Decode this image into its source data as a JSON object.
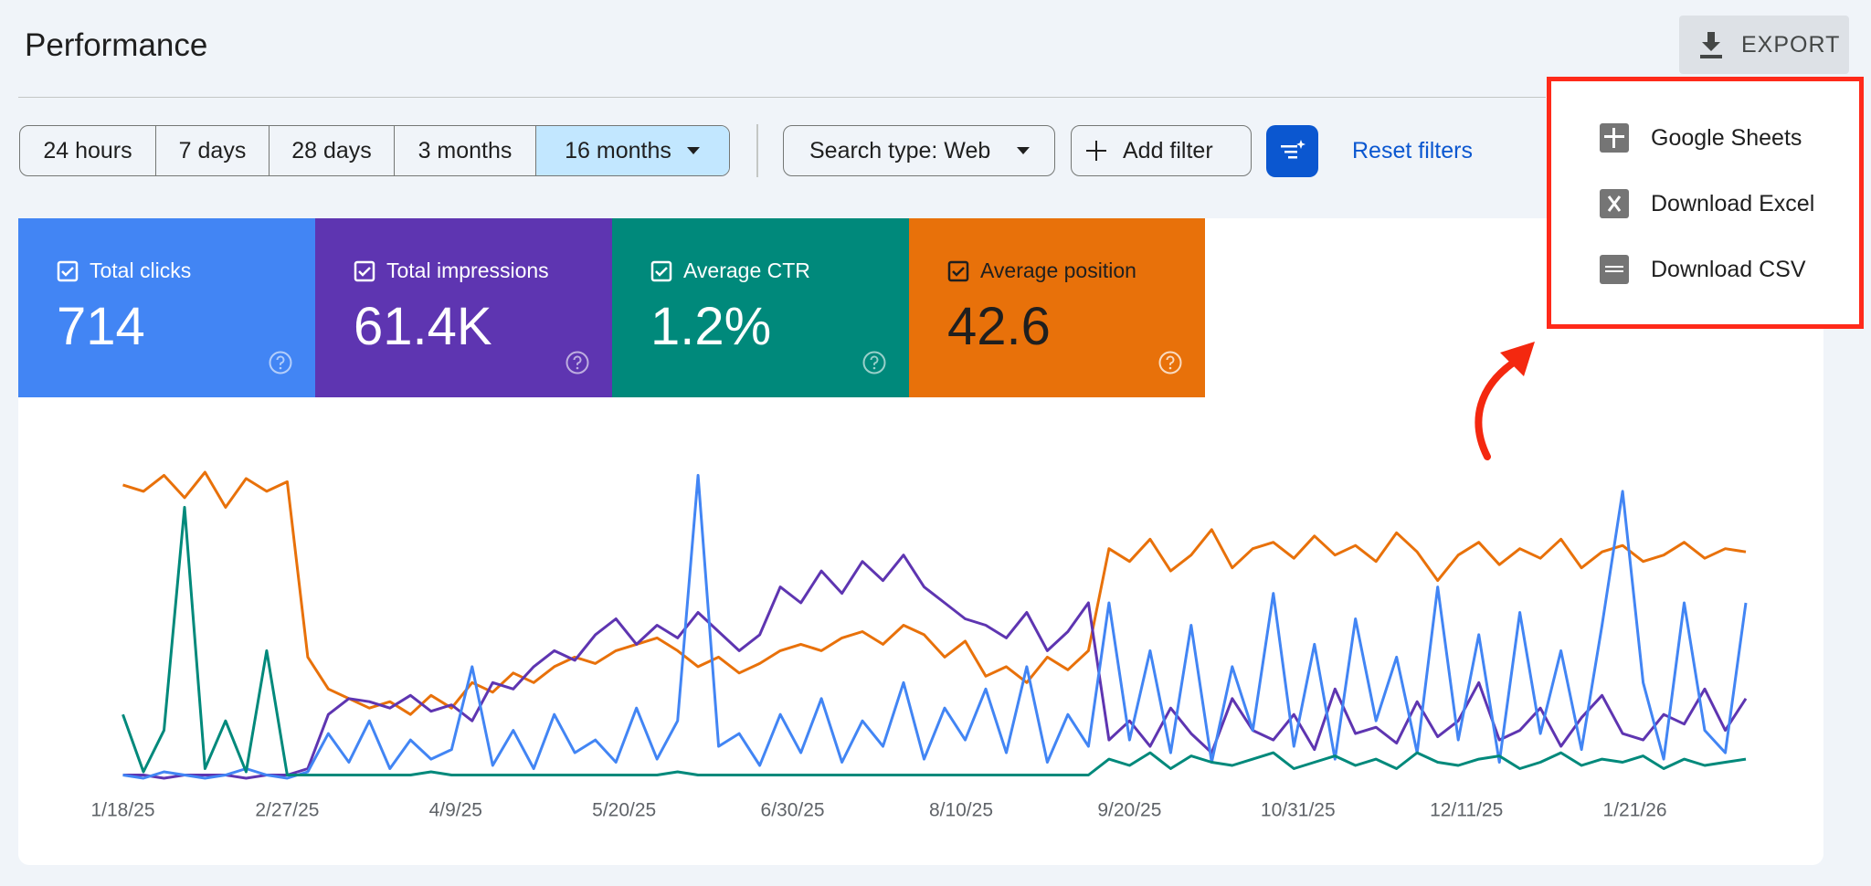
{
  "header": {
    "title": "Performance",
    "export": "EXPORT"
  },
  "export_menu": {
    "items": [
      "Google Sheets",
      "Download Excel",
      "Download CSV"
    ]
  },
  "date_ranges": {
    "options": [
      "24 hours",
      "7 days",
      "28 days",
      "3 months",
      "16 months"
    ],
    "selected": 4
  },
  "filters": {
    "search_type": "Search type: Web",
    "add_filter": "Add filter",
    "reset": "Reset filters"
  },
  "metrics": [
    {
      "label": "Total clicks",
      "value": "714",
      "color": "#4285f4"
    },
    {
      "label": "Total impressions",
      "value": "61.4K",
      "color": "#5e35b1"
    },
    {
      "label": "Average CTR",
      "value": "1.2%",
      "color": "#00897b"
    },
    {
      "label": "Average position",
      "value": "42.6",
      "color": "#e8710a"
    }
  ],
  "chart_data": {
    "type": "line",
    "xlim": [
      0,
      395
    ],
    "ylim": [
      0,
      100
    ],
    "xticks": [
      {
        "value": 0,
        "label": "1/18/25"
      },
      {
        "value": 40,
        "label": "2/27/25"
      },
      {
        "value": 81,
        "label": "4/9/25"
      },
      {
        "value": 122,
        "label": "5/20/25"
      },
      {
        "value": 163,
        "label": "6/30/25"
      },
      {
        "value": 204,
        "label": "8/10/25"
      },
      {
        "value": 245,
        "label": "9/20/25"
      },
      {
        "value": 286,
        "label": "10/31/25"
      },
      {
        "value": 327,
        "label": "12/11/25"
      },
      {
        "value": 368,
        "label": "1/21/26"
      }
    ],
    "x": [
      0,
      5,
      10,
      15,
      20,
      25,
      30,
      35,
      40,
      45,
      50,
      55,
      60,
      65,
      70,
      75,
      80,
      85,
      90,
      95,
      100,
      105,
      110,
      115,
      120,
      125,
      130,
      135,
      140,
      145,
      150,
      155,
      160,
      165,
      170,
      175,
      180,
      185,
      190,
      195,
      200,
      205,
      210,
      215,
      220,
      225,
      230,
      235,
      240,
      245,
      250,
      255,
      260,
      265,
      270,
      275,
      280,
      285,
      290,
      295,
      300,
      305,
      310,
      315,
      320,
      325,
      330,
      335,
      340,
      345,
      350,
      355,
      360,
      365,
      370,
      375,
      380,
      385,
      390,
      395
    ],
    "series": [
      {
        "color": "#e8710a",
        "values": [
          92,
          90,
          95,
          88,
          96,
          85,
          94,
          90,
          93,
          38,
          28,
          25,
          22,
          24,
          20,
          26,
          22,
          30,
          27,
          33,
          30,
          35,
          38,
          36,
          40,
          42,
          44,
          40,
          35,
          38,
          33,
          36,
          40,
          42,
          40,
          44,
          46,
          42,
          48,
          45,
          38,
          43,
          32,
          35,
          30,
          38,
          34,
          40,
          72,
          68,
          75,
          65,
          70,
          78,
          66,
          72,
          74,
          69,
          76,
          70,
          73,
          68,
          77,
          71,
          62,
          70,
          74,
          67,
          72,
          69,
          75,
          66,
          71,
          73,
          68,
          70,
          74,
          69,
          72,
          71
        ]
      },
      {
        "color": "#5e35b1",
        "values": [
          1,
          1,
          0,
          1,
          1,
          1,
          0,
          1,
          1,
          3,
          20,
          25,
          24,
          22,
          26,
          21,
          23,
          18,
          30,
          28,
          35,
          40,
          37,
          45,
          50,
          42,
          48,
          44,
          52,
          46,
          40,
          45,
          60,
          55,
          65,
          58,
          68,
          62,
          70,
          60,
          55,
          50,
          48,
          44,
          52,
          40,
          46,
          55,
          12,
          18,
          10,
          22,
          14,
          8,
          25,
          15,
          12,
          20,
          9,
          28,
          14,
          16,
          11,
          24,
          13,
          18,
          30,
          12,
          15,
          22,
          10,
          19,
          26,
          14,
          12,
          20,
          17,
          28,
          15,
          25
        ]
      },
      {
        "color": "#4285f4",
        "values": [
          1,
          0,
          2,
          1,
          0,
          1,
          3,
          1,
          0,
          2,
          14,
          5,
          18,
          3,
          12,
          6,
          9,
          35,
          4,
          15,
          3,
          20,
          8,
          12,
          5,
          22,
          6,
          18,
          95,
          10,
          14,
          4,
          20,
          8,
          25,
          5,
          18,
          10,
          30,
          6,
          22,
          12,
          28,
          8,
          35,
          5,
          20,
          10,
          55,
          12,
          40,
          8,
          48,
          5,
          35,
          15,
          58,
          10,
          42,
          6,
          50,
          18,
          38,
          8,
          60,
          12,
          45,
          5,
          52,
          14,
          40,
          9,
          48,
          90,
          30,
          6,
          55,
          15,
          8,
          55
        ]
      },
      {
        "color": "#00897b",
        "values": [
          20,
          2,
          15,
          85,
          3,
          18,
          2,
          40,
          1,
          1,
          1,
          1,
          1,
          1,
          1,
          2,
          1,
          1,
          1,
          1,
          1,
          1,
          1,
          1,
          1,
          1,
          1,
          2,
          1,
          1,
          1,
          1,
          1,
          1,
          1,
          1,
          1,
          1,
          1,
          1,
          1,
          1,
          1,
          1,
          1,
          1,
          1,
          1,
          6,
          4,
          8,
          3,
          7,
          5,
          4,
          6,
          8,
          3,
          5,
          7,
          4,
          6,
          3,
          8,
          5,
          4,
          6,
          7,
          3,
          5,
          8,
          4,
          6,
          5,
          7,
          3,
          6,
          4,
          5,
          6
        ]
      }
    ]
  }
}
